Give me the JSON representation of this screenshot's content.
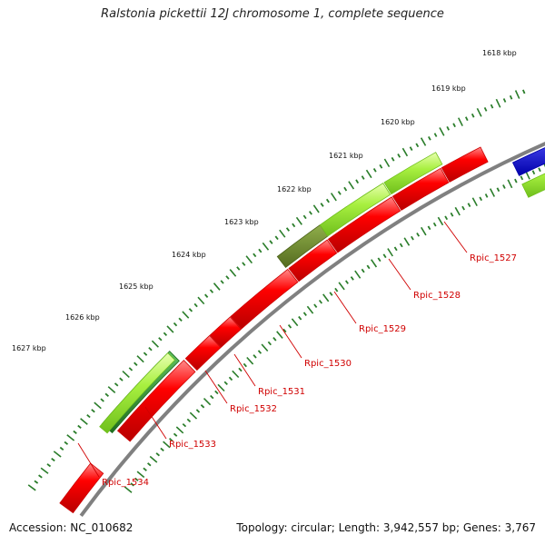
{
  "title": "Ralstonia pickettii 12J chromosome 1, complete sequence",
  "accession": "Accession: NC_010682",
  "topology": "Topology: circular; Length: 3,942,557 bp; Genes: 3,767",
  "kbp_labels": [
    "1618 kbp",
    "1619 kbp",
    "1620 kbp",
    "1621 kbp",
    "1622 kbp",
    "1623 kbp",
    "1624 kbp",
    "1625 kbp",
    "1626 kbp",
    "1627 kbp"
  ],
  "gene_labels": [
    "Rpic_1527",
    "Rpic_1528",
    "Rpic_1529",
    "Rpic_1530",
    "Rpic_1531",
    "Rpic_1532",
    "Rpic_1533",
    "Rpic_1534"
  ],
  "colors": {
    "backbone": "#808080",
    "cds_forward": "#ff0000",
    "cds_reverse": "#99ee33",
    "dark_green": "#2e8b2e",
    "olive": "#6b8e23",
    "blue": "#0000ee",
    "ticks": "#2a7d2a",
    "label": "#d00000"
  }
}
